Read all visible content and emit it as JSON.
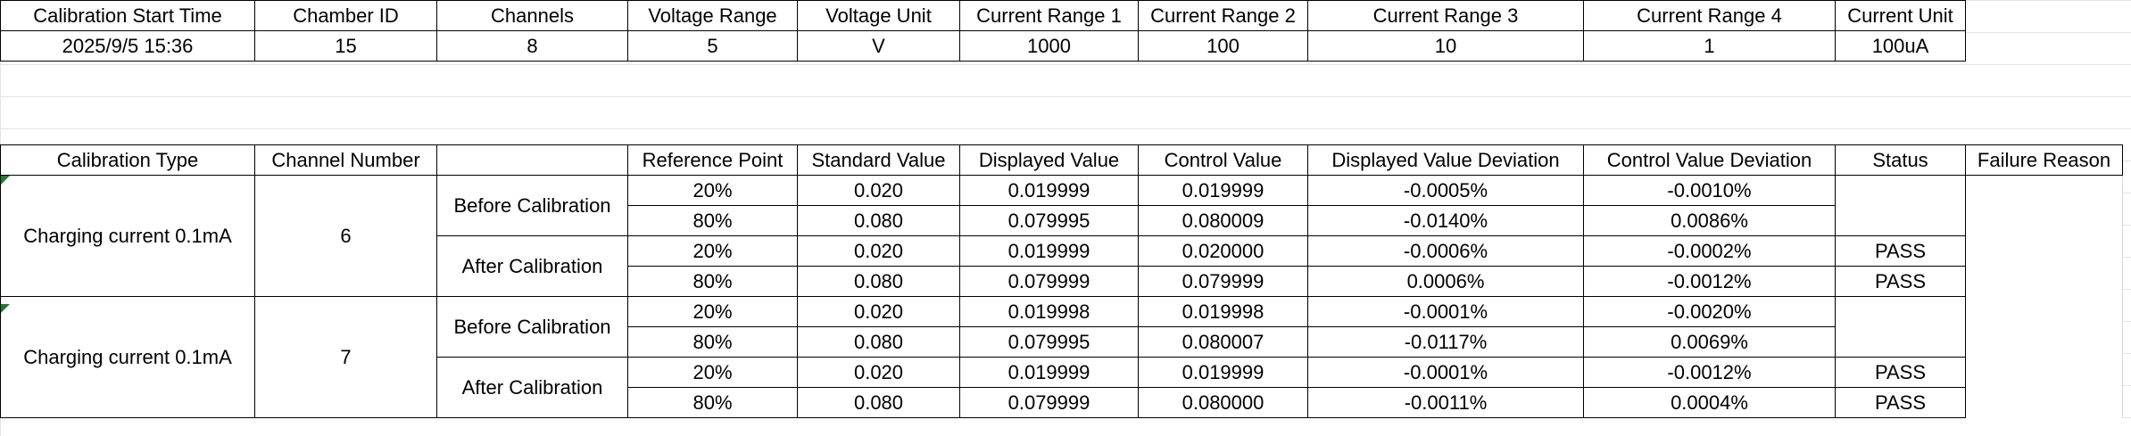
{
  "info_table": {
    "headers": [
      "Calibration Start Time",
      "Chamber ID",
      "Channels",
      "Voltage Range",
      "Voltage Unit",
      "Current Range 1",
      "Current Range 2",
      "Current Range 3",
      "Current Range 4",
      "Current Unit"
    ],
    "values": [
      "2025/9/5 15:36",
      "15",
      "8",
      "5",
      "V",
      "1000",
      "100",
      "10",
      "1",
      "100uA"
    ]
  },
  "calib_table": {
    "headers": [
      "Calibration Type",
      "Channel Number",
      "",
      "Reference Point",
      "Standard Value",
      "Displayed Value",
      "Control Value",
      "Displayed Value Deviation",
      "Control Value Deviation",
      "Status",
      "Failure Reason"
    ],
    "groups": [
      {
        "type": "Charging current 0.1mA",
        "channel": "6",
        "phases": [
          {
            "label": "Before Calibration",
            "rows": [
              {
                "ref": "20%",
                "std": "0.020",
                "disp": "0.019999",
                "ctrl": "0.019999",
                "disp_dev": "-0.0005%",
                "ctrl_dev": "-0.0010%",
                "status": ""
              },
              {
                "ref": "80%",
                "std": "0.080",
                "disp": "0.079995",
                "ctrl": "0.080009",
                "disp_dev": "-0.0140%",
                "ctrl_dev": "0.0086%",
                "status": ""
              }
            ]
          },
          {
            "label": "After Calibration",
            "rows": [
              {
                "ref": "20%",
                "std": "0.020",
                "disp": "0.019999",
                "ctrl": "0.020000",
                "disp_dev": "-0.0006%",
                "ctrl_dev": "-0.0002%",
                "status": "PASS"
              },
              {
                "ref": "80%",
                "std": "0.080",
                "disp": "0.079999",
                "ctrl": "0.079999",
                "disp_dev": "0.0006%",
                "ctrl_dev": "-0.0012%",
                "status": "PASS"
              }
            ]
          }
        ]
      },
      {
        "type": "Charging current 0.1mA",
        "channel": "7",
        "phases": [
          {
            "label": "Before Calibration",
            "rows": [
              {
                "ref": "20%",
                "std": "0.020",
                "disp": "0.019998",
                "ctrl": "0.019998",
                "disp_dev": "-0.0001%",
                "ctrl_dev": "-0.0020%",
                "status": ""
              },
              {
                "ref": "80%",
                "std": "0.080",
                "disp": "0.079995",
                "ctrl": "0.080007",
                "disp_dev": "-0.0117%",
                "ctrl_dev": "0.0069%",
                "status": ""
              }
            ]
          },
          {
            "label": "After Calibration",
            "rows": [
              {
                "ref": "20%",
                "std": "0.020",
                "disp": "0.019999",
                "ctrl": "0.019999",
                "disp_dev": "-0.0001%",
                "ctrl_dev": "-0.0012%",
                "status": "PASS"
              },
              {
                "ref": "80%",
                "std": "0.080",
                "disp": "0.079999",
                "ctrl": "0.080000",
                "disp_dev": "-0.0011%",
                "ctrl_dev": "0.0004%",
                "status": "PASS"
              }
            ]
          }
        ]
      }
    ]
  },
  "colors": {
    "gridline": "#e3e3e3",
    "border": "#000000",
    "corner_mark": "#1e7b34"
  }
}
